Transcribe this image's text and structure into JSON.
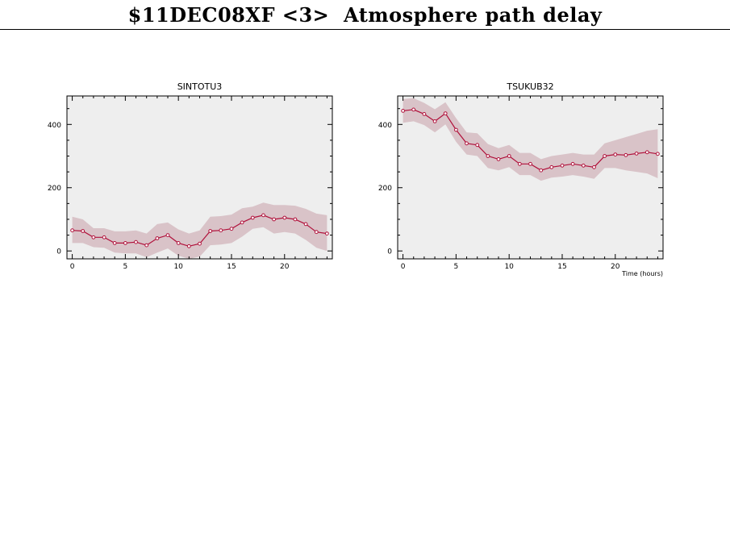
{
  "header": {
    "title": "$11DEC08XF <3>  Atmosphere path delay"
  },
  "colors": {
    "plot_background": "#eeeeee",
    "band": "#d9c3c8",
    "line": "#b0103a"
  },
  "chart_data": [
    {
      "type": "line",
      "title": "SINTOTU3",
      "xlabel": "",
      "ylabel": "",
      "xlim": [
        -0.5,
        24.5
      ],
      "ylim": [
        -25,
        490
      ],
      "xticks": [
        0,
        5,
        10,
        15,
        20
      ],
      "yticks": [
        0,
        200,
        400
      ],
      "grid": false,
      "series": [
        {
          "x": [
            0,
            1,
            2,
            3,
            4,
            5,
            6,
            7,
            8,
            9,
            10,
            11,
            12,
            13,
            14,
            15,
            16,
            17,
            18,
            19,
            20,
            21,
            22,
            23,
            24
          ],
          "values": [
            65,
            63,
            43,
            43,
            25,
            25,
            28,
            18,
            40,
            50,
            25,
            15,
            23,
            63,
            65,
            70,
            90,
            105,
            113,
            100,
            105,
            100,
            85,
            60,
            55
          ],
          "upper": [
            108,
            100,
            72,
            72,
            62,
            62,
            65,
            55,
            85,
            90,
            68,
            55,
            65,
            108,
            110,
            115,
            135,
            140,
            153,
            145,
            145,
            143,
            133,
            118,
            113
          ],
          "lower": [
            25,
            25,
            12,
            10,
            -5,
            -8,
            -8,
            -20,
            -5,
            8,
            -15,
            -25,
            -18,
            18,
            20,
            25,
            45,
            70,
            75,
            55,
            60,
            55,
            35,
            10,
            0
          ]
        }
      ]
    },
    {
      "type": "line",
      "title": "TSUKUB32",
      "xlabel": "Time (hours)",
      "ylabel": "",
      "xlim": [
        -0.5,
        24.5
      ],
      "ylim": [
        -25,
        490
      ],
      "xticks": [
        0,
        5,
        10,
        15,
        20
      ],
      "yticks": [
        0,
        200,
        400
      ],
      "grid": false,
      "series": [
        {
          "x": [
            0,
            1,
            2,
            3,
            4,
            5,
            6,
            7,
            8,
            9,
            10,
            11,
            12,
            13,
            14,
            15,
            16,
            17,
            18,
            19,
            20,
            21,
            22,
            23,
            24
          ],
          "values": [
            443,
            447,
            433,
            410,
            435,
            383,
            340,
            335,
            300,
            290,
            300,
            275,
            275,
            255,
            265,
            270,
            275,
            270,
            265,
            300,
            305,
            303,
            308,
            312,
            307
          ],
          "upper": [
            480,
            483,
            468,
            448,
            470,
            420,
            375,
            372,
            338,
            325,
            335,
            310,
            310,
            290,
            300,
            305,
            310,
            305,
            305,
            340,
            350,
            360,
            370,
            380,
            385
          ],
          "lower": [
            405,
            410,
            398,
            375,
            400,
            345,
            305,
            300,
            262,
            255,
            265,
            240,
            240,
            222,
            232,
            235,
            240,
            235,
            228,
            262,
            262,
            255,
            250,
            245,
            230
          ]
        }
      ]
    }
  ]
}
